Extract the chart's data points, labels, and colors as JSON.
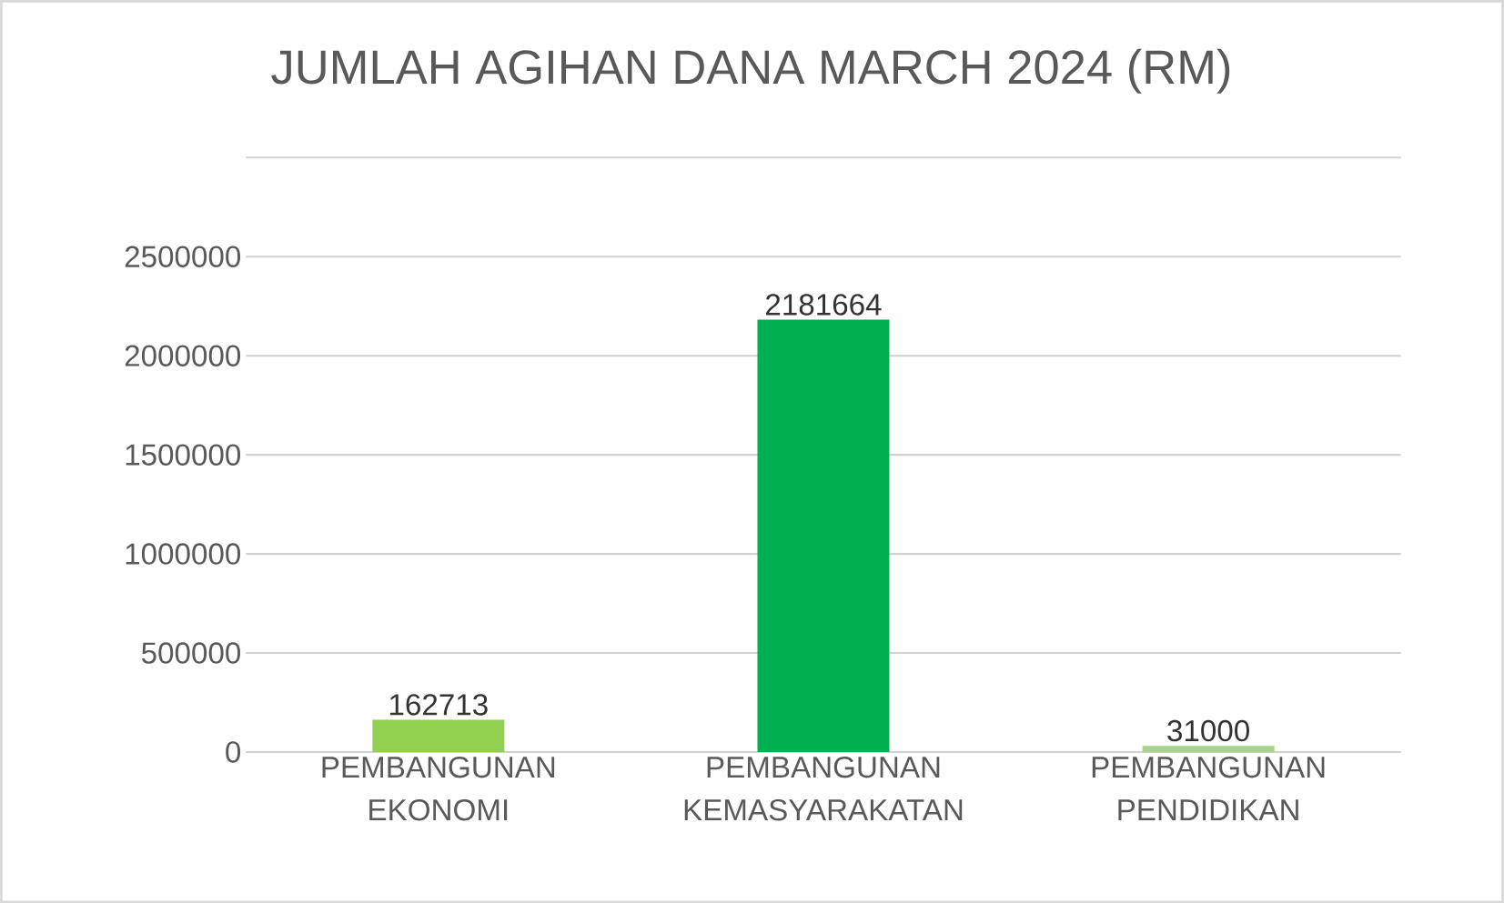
{
  "chart_data": {
    "type": "bar",
    "title": "JUMLAH AGIHAN DANA MARCH 2024 (RM)",
    "categories": [
      "PEMBANGUNAN EKONOMI",
      "PEMBANGUNAN KEMASYARAKATAN",
      "PEMBANGUNAN PENDIDIKAN"
    ],
    "values": [
      162713,
      2181664,
      31000
    ],
    "colors": [
      "#92d050",
      "#00b050",
      "#a9d18e"
    ],
    "ylim": [
      0,
      3000000
    ],
    "yticks": [
      0,
      500000,
      1000000,
      1500000,
      2000000,
      2500000,
      {
        "value": 3000000,
        "label": null
      }
    ],
    "grid": "y",
    "data_labels": true
  }
}
